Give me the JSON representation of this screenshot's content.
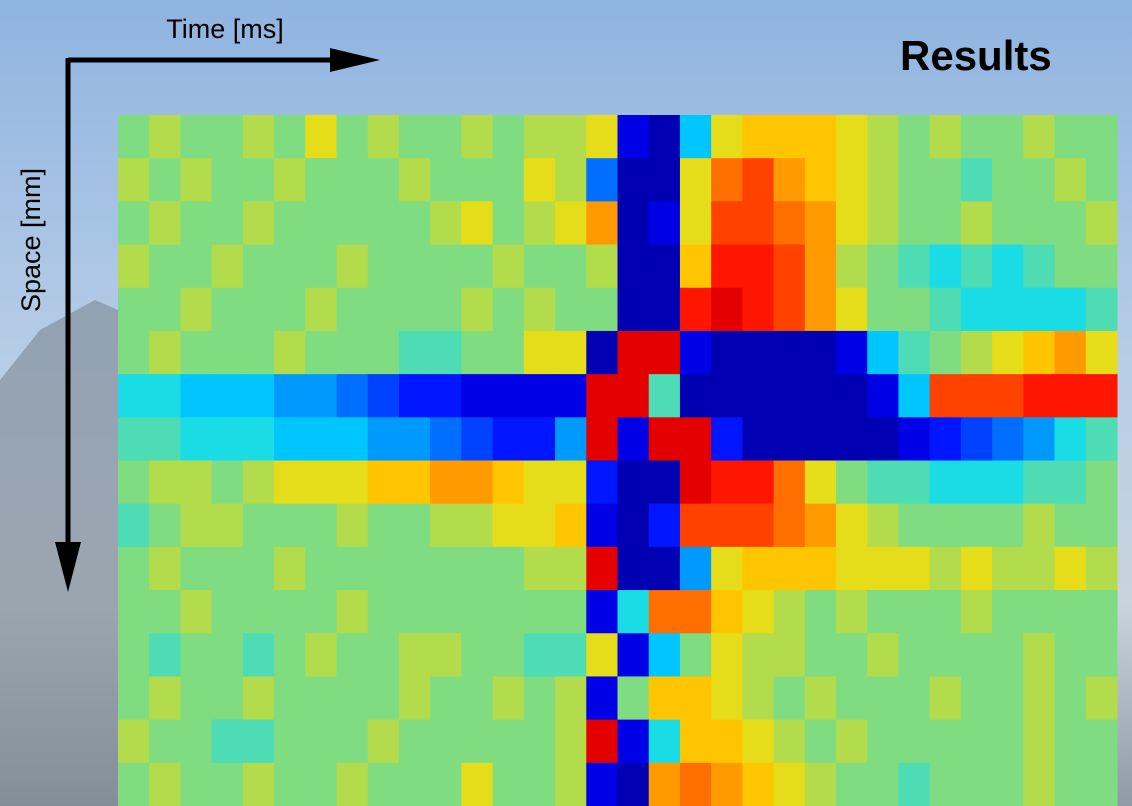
{
  "chart_data": {
    "type": "heatmap",
    "title": "Results",
    "xlabel": "Time [ms]",
    "ylabel": "Space [mm]",
    "colormap": "jet",
    "zlim": [
      0,
      1
    ],
    "z": [
      [
        0.5,
        0.55,
        0.5,
        0.5,
        0.55,
        0.5,
        0.6,
        0.5,
        0.55,
        0.5,
        0.5,
        0.55,
        0.5,
        0.55,
        0.55,
        0.6,
        0.1,
        0.05,
        0.35,
        0.6,
        0.65,
        0.65,
        0.65,
        0.6,
        0.55,
        0.5,
        0.55,
        0.5,
        0.5,
        0.55,
        0.5,
        0.5
      ],
      [
        0.55,
        0.5,
        0.55,
        0.5,
        0.5,
        0.55,
        0.5,
        0.5,
        0.5,
        0.55,
        0.5,
        0.5,
        0.5,
        0.6,
        0.55,
        0.25,
        0.05,
        0.05,
        0.6,
        0.75,
        0.8,
        0.7,
        0.65,
        0.6,
        0.55,
        0.5,
        0.5,
        0.45,
        0.5,
        0.5,
        0.55,
        0.5
      ],
      [
        0.5,
        0.55,
        0.5,
        0.5,
        0.55,
        0.5,
        0.5,
        0.5,
        0.5,
        0.5,
        0.55,
        0.6,
        0.5,
        0.55,
        0.6,
        0.7,
        0.05,
        0.1,
        0.6,
        0.8,
        0.8,
        0.75,
        0.7,
        0.6,
        0.55,
        0.5,
        0.5,
        0.55,
        0.5,
        0.5,
        0.5,
        0.55
      ],
      [
        0.55,
        0.5,
        0.5,
        0.55,
        0.5,
        0.5,
        0.5,
        0.55,
        0.5,
        0.5,
        0.5,
        0.5,
        0.55,
        0.5,
        0.5,
        0.55,
        0.05,
        0.05,
        0.65,
        0.85,
        0.85,
        0.8,
        0.7,
        0.55,
        0.5,
        0.45,
        0.4,
        0.45,
        0.4,
        0.45,
        0.5,
        0.5
      ],
      [
        0.5,
        0.5,
        0.55,
        0.5,
        0.5,
        0.5,
        0.55,
        0.5,
        0.5,
        0.5,
        0.5,
        0.55,
        0.5,
        0.55,
        0.5,
        0.5,
        0.05,
        0.05,
        0.85,
        0.9,
        0.85,
        0.8,
        0.7,
        0.6,
        0.5,
        0.5,
        0.45,
        0.4,
        0.4,
        0.4,
        0.4,
        0.45
      ],
      [
        0.5,
        0.55,
        0.5,
        0.5,
        0.5,
        0.55,
        0.5,
        0.5,
        0.5,
        0.45,
        0.45,
        0.5,
        0.5,
        0.6,
        0.6,
        0.05,
        0.9,
        0.9,
        0.1,
        0.05,
        0.05,
        0.05,
        0.05,
        0.1,
        0.35,
        0.45,
        0.5,
        0.55,
        0.6,
        0.65,
        0.7,
        0.6
      ],
      [
        0.4,
        0.4,
        0.35,
        0.35,
        0.35,
        0.3,
        0.3,
        0.25,
        0.2,
        0.15,
        0.15,
        0.1,
        0.1,
        0.1,
        0.1,
        0.9,
        0.9,
        0.45,
        0.05,
        0.05,
        0.05,
        0.05,
        0.05,
        0.05,
        0.1,
        0.35,
        0.8,
        0.8,
        0.8,
        0.85,
        0.85,
        0.85
      ],
      [
        0.45,
        0.45,
        0.4,
        0.4,
        0.4,
        0.35,
        0.35,
        0.35,
        0.3,
        0.3,
        0.25,
        0.2,
        0.15,
        0.15,
        0.3,
        0.9,
        0.1,
        0.9,
        0.9,
        0.15,
        0.05,
        0.05,
        0.05,
        0.05,
        0.05,
        0.1,
        0.15,
        0.2,
        0.25,
        0.3,
        0.4,
        0.45
      ],
      [
        0.5,
        0.55,
        0.55,
        0.5,
        0.55,
        0.6,
        0.6,
        0.6,
        0.65,
        0.65,
        0.7,
        0.7,
        0.65,
        0.6,
        0.6,
        0.15,
        0.05,
        0.05,
        0.9,
        0.85,
        0.85,
        0.75,
        0.6,
        0.5,
        0.45,
        0.45,
        0.4,
        0.4,
        0.4,
        0.45,
        0.45,
        0.5
      ],
      [
        0.45,
        0.5,
        0.55,
        0.55,
        0.5,
        0.5,
        0.5,
        0.55,
        0.5,
        0.5,
        0.55,
        0.55,
        0.6,
        0.6,
        0.65,
        0.1,
        0.05,
        0.15,
        0.8,
        0.8,
        0.8,
        0.75,
        0.7,
        0.6,
        0.55,
        0.5,
        0.5,
        0.5,
        0.5,
        0.55,
        0.5,
        0.5
      ],
      [
        0.5,
        0.55,
        0.5,
        0.5,
        0.5,
        0.55,
        0.5,
        0.5,
        0.5,
        0.5,
        0.5,
        0.5,
        0.5,
        0.55,
        0.55,
        0.9,
        0.05,
        0.05,
        0.3,
        0.6,
        0.65,
        0.65,
        0.65,
        0.6,
        0.6,
        0.6,
        0.55,
        0.6,
        0.55,
        0.55,
        0.6,
        0.55
      ],
      [
        0.5,
        0.5,
        0.55,
        0.5,
        0.5,
        0.5,
        0.5,
        0.55,
        0.5,
        0.5,
        0.5,
        0.5,
        0.5,
        0.5,
        0.5,
        0.1,
        0.4,
        0.75,
        0.75,
        0.65,
        0.6,
        0.55,
        0.5,
        0.55,
        0.5,
        0.5,
        0.5,
        0.55,
        0.5,
        0.5,
        0.5,
        0.5
      ],
      [
        0.5,
        0.45,
        0.5,
        0.5,
        0.45,
        0.5,
        0.55,
        0.5,
        0.5,
        0.55,
        0.55,
        0.5,
        0.5,
        0.45,
        0.45,
        0.6,
        0.1,
        0.35,
        0.5,
        0.6,
        0.55,
        0.55,
        0.5,
        0.5,
        0.55,
        0.5,
        0.5,
        0.5,
        0.5,
        0.55,
        0.5,
        0.5
      ],
      [
        0.5,
        0.55,
        0.5,
        0.5,
        0.55,
        0.5,
        0.5,
        0.5,
        0.5,
        0.55,
        0.5,
        0.5,
        0.55,
        0.5,
        0.55,
        0.1,
        0.5,
        0.65,
        0.65,
        0.6,
        0.55,
        0.5,
        0.55,
        0.5,
        0.5,
        0.5,
        0.55,
        0.5,
        0.5,
        0.55,
        0.5,
        0.55
      ],
      [
        0.55,
        0.5,
        0.5,
        0.45,
        0.45,
        0.5,
        0.5,
        0.5,
        0.55,
        0.5,
        0.5,
        0.5,
        0.5,
        0.5,
        0.55,
        0.9,
        0.1,
        0.4,
        0.65,
        0.65,
        0.6,
        0.55,
        0.5,
        0.55,
        0.5,
        0.5,
        0.5,
        0.5,
        0.5,
        0.55,
        0.5,
        0.5
      ],
      [
        0.5,
        0.55,
        0.5,
        0.5,
        0.55,
        0.5,
        0.5,
        0.55,
        0.5,
        0.5,
        0.5,
        0.6,
        0.5,
        0.5,
        0.55,
        0.1,
        0.05,
        0.7,
        0.75,
        0.7,
        0.65,
        0.6,
        0.55,
        0.5,
        0.5,
        0.45,
        0.5,
        0.5,
        0.5,
        0.55,
        0.5,
        0.5
      ]
    ]
  }
}
